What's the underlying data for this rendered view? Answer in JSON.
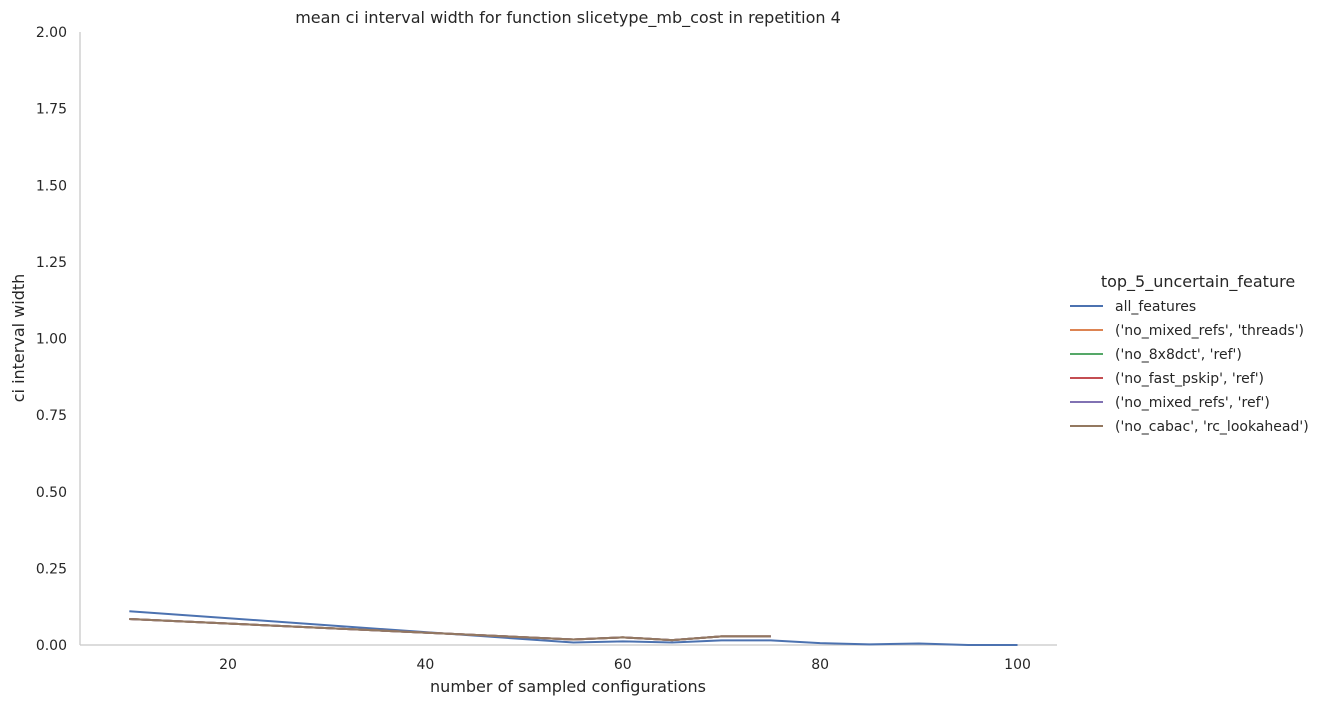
{
  "chart_data": {
    "type": "line",
    "title": "mean ci interval width for function slicetype_mb_cost in repetition 4",
    "xlabel": "number of sampled configurations",
    "ylabel": "ci interval width",
    "xlim": [
      5,
      104
    ],
    "ylim": [
      0,
      2.0
    ],
    "xticks": [
      20,
      40,
      60,
      80,
      100
    ],
    "yticks": [
      0.0,
      0.25,
      0.5,
      0.75,
      1.0,
      1.25,
      1.5,
      1.75,
      2.0
    ],
    "xtick_labels": [
      "20",
      "40",
      "60",
      "80",
      "100"
    ],
    "ytick_labels": [
      "0.00",
      "0.25",
      "0.50",
      "0.75",
      "1.00",
      "1.25",
      "1.50",
      "1.75",
      "2.00"
    ],
    "grid": false,
    "legend": {
      "title": "top_5_uncertain_feature",
      "placement": "right"
    },
    "series": [
      {
        "name": "all_features",
        "color": "#4c72b0",
        "x": [
          10,
          55,
          60,
          65,
          70,
          75,
          80,
          85,
          90,
          95,
          100
        ],
        "y": [
          0.11,
          0.008,
          0.012,
          0.008,
          0.015,
          0.015,
          0.006,
          0.002,
          0.005,
          0.0,
          0.0
        ]
      },
      {
        "name": "('no_mixed_refs', 'threads')",
        "color": "#dd8452",
        "x": [
          10,
          55,
          60,
          65,
          70,
          75
        ],
        "y": [
          0.085,
          0.018,
          0.025,
          0.016,
          0.028,
          0.028
        ]
      },
      {
        "name": "('no_8x8dct', 'ref')",
        "color": "#55a868",
        "x": [
          10,
          55,
          60,
          65,
          70,
          75
        ],
        "y": [
          0.085,
          0.018,
          0.025,
          0.016,
          0.028,
          0.028
        ]
      },
      {
        "name": "('no_fast_pskip', 'ref')",
        "color": "#c44e52",
        "x": [
          10,
          55,
          60,
          65,
          70,
          75
        ],
        "y": [
          0.085,
          0.018,
          0.025,
          0.016,
          0.028,
          0.028
        ]
      },
      {
        "name": "('no_mixed_refs', 'ref')",
        "color": "#8172b3",
        "x": [
          10,
          55,
          60,
          65,
          70,
          75
        ],
        "y": [
          0.085,
          0.018,
          0.025,
          0.016,
          0.028,
          0.028
        ]
      },
      {
        "name": "('no_cabac', 'rc_lookahead')",
        "color": "#937860",
        "x": [
          10,
          55,
          60,
          65,
          70,
          75
        ],
        "y": [
          0.085,
          0.018,
          0.025,
          0.016,
          0.028,
          0.028
        ]
      }
    ]
  }
}
